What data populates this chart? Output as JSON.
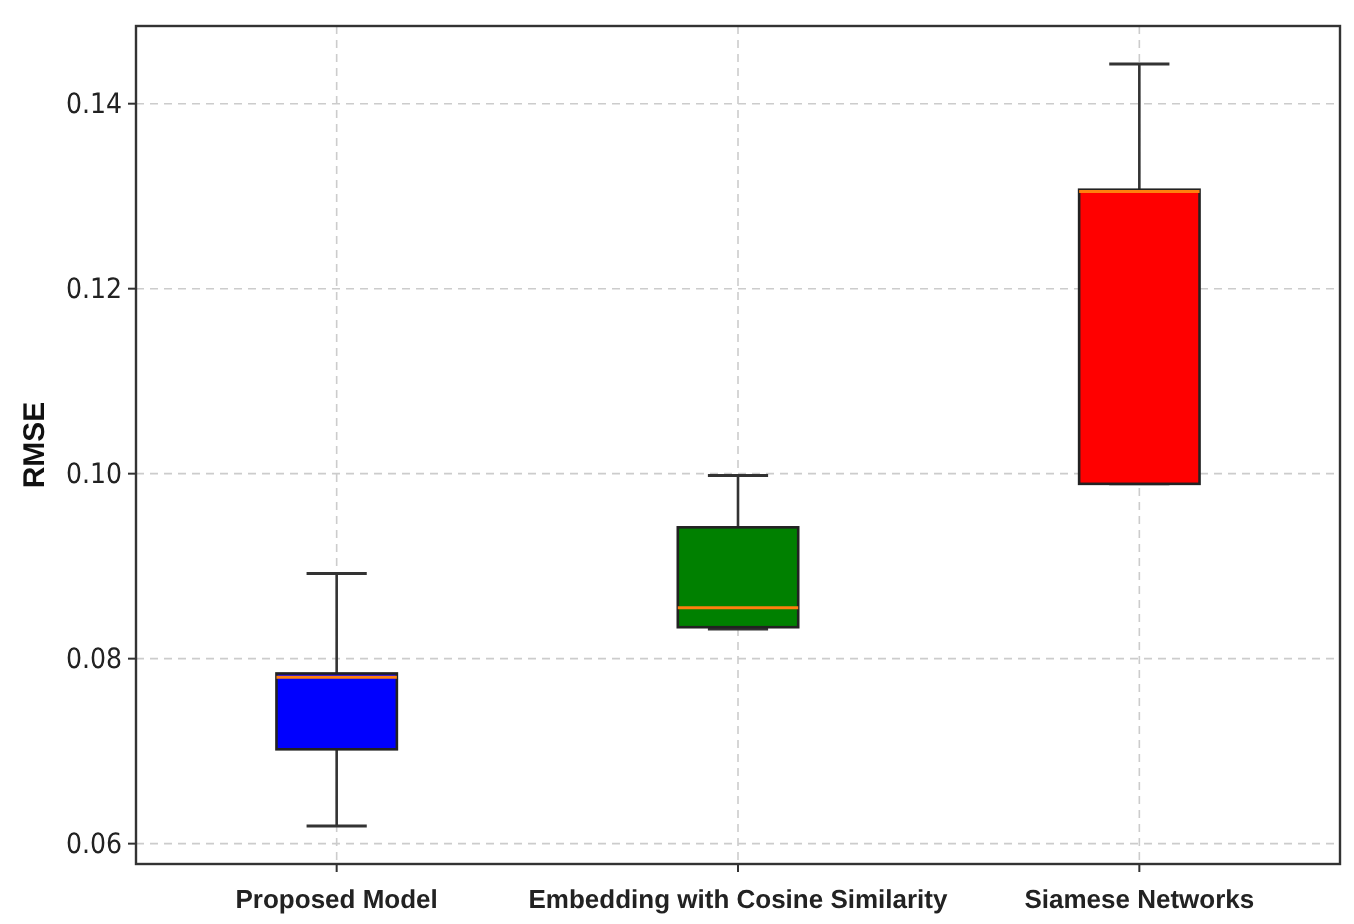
{
  "chart_data": {
    "type": "box",
    "ylabel": "RMSE",
    "categories": [
      "Proposed Model",
      "Embedding with Cosine Similarity",
      "Siamese Networks"
    ],
    "colors": [
      "#0000ff",
      "#008000",
      "#ff0000"
    ],
    "boxes": [
      {
        "low": 0.0619,
        "q1": 0.0702,
        "median": 0.078,
        "q3": 0.0784,
        "high": 0.0892
      },
      {
        "low": 0.0832,
        "q1": 0.0834,
        "median": 0.0855,
        "q3": 0.0942,
        "high": 0.0998
      },
      {
        "low": 0.0989,
        "q1": 0.0989,
        "median": 0.1305,
        "q3": 0.1307,
        "high": 0.1443
      }
    ],
    "ylim": [
      0.0578,
      0.1484
    ],
    "yticks": [
      {
        "value": 0.06,
        "label": "0.06"
      },
      {
        "value": 0.08,
        "label": "0.08"
      },
      {
        "value": 0.1,
        "label": "0.10"
      },
      {
        "value": 0.12,
        "label": "0.12"
      },
      {
        "value": 0.14,
        "label": "0.14"
      }
    ],
    "grid": true
  }
}
